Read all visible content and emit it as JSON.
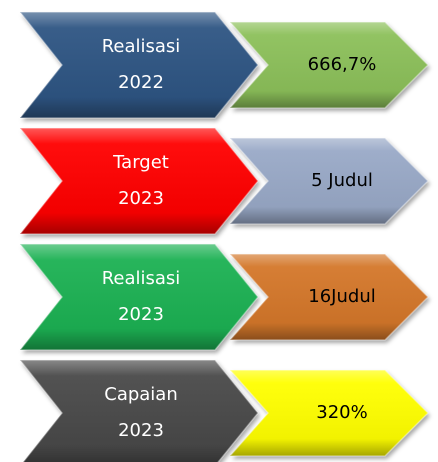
{
  "rows": [
    {
      "label": [
        "Realisasi",
        "2022"
      ],
      "value": "666,7%",
      "color": "#2e5483",
      "value_color": "#8cc05a"
    },
    {
      "label": [
        "Target",
        "2023"
      ],
      "value": "5 Judul",
      "color": "#ff0000",
      "value_color": "#99a9c7"
    },
    {
      "label": [
        "Realisasi",
        "2023"
      ],
      "value": "16Judul",
      "color": "#1fb153",
      "value_color": "#d4772c"
    },
    {
      "label": [
        "Capaian",
        "2023"
      ],
      "value": "320%",
      "color": "#4a4a4a",
      "value_color": "#ffff00"
    }
  ]
}
